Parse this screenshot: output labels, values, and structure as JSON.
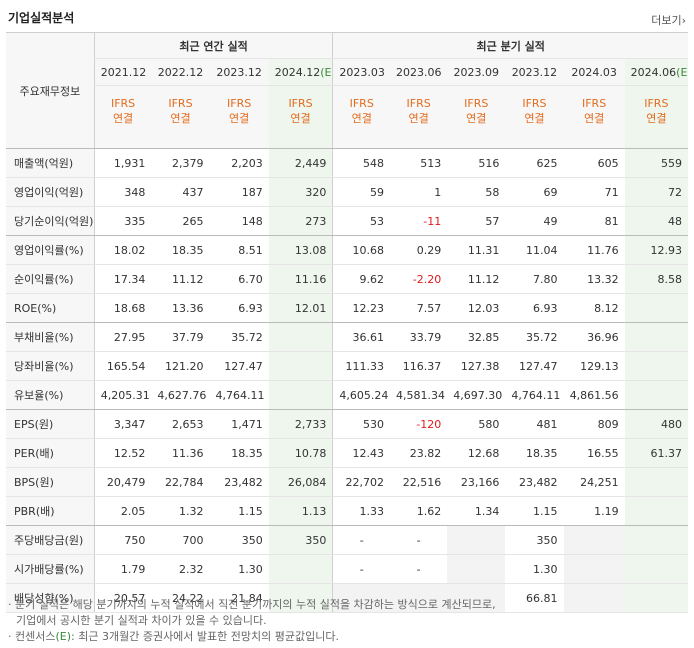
{
  "title": "기업실적분석",
  "more_label": "더보기",
  "more_icon": "chevron-right-icon",
  "header": {
    "row_label": "주요재무정보",
    "annual_group": "최근 연간 실적",
    "quarter_group": "최근 분기 실적",
    "periods": [
      "2021.12",
      "2022.12",
      "2023.12",
      "2024.12",
      "2023.03",
      "2023.06",
      "2023.09",
      "2023.12",
      "2024.03",
      "2024.06"
    ],
    "estimate_mark": "(E)",
    "basis_line1": "IFRS",
    "basis_line2": "연결"
  },
  "rows": [
    {
      "label": "매출액(억원)",
      "values": [
        "1,931",
        "2,379",
        "2,203",
        "2,449",
        "548",
        "513",
        "516",
        "625",
        "605",
        "559"
      ]
    },
    {
      "label": "영업이익(억원)",
      "values": [
        "348",
        "437",
        "187",
        "320",
        "59",
        "1",
        "58",
        "69",
        "71",
        "72"
      ]
    },
    {
      "label": "당기순이익(억원)",
      "values": [
        "335",
        "265",
        "148",
        "273",
        "53",
        "-11",
        "57",
        "49",
        "81",
        "48"
      ]
    },
    {
      "label": "영업이익률(%)",
      "values": [
        "18.02",
        "18.35",
        "8.51",
        "13.08",
        "10.68",
        "0.29",
        "11.31",
        "11.04",
        "11.76",
        "12.93"
      ]
    },
    {
      "label": "순이익률(%)",
      "values": [
        "17.34",
        "11.12",
        "6.70",
        "11.16",
        "9.62",
        "-2.20",
        "11.12",
        "7.80",
        "13.32",
        "8.58"
      ]
    },
    {
      "label": "ROE(%)",
      "values": [
        "18.68",
        "13.36",
        "6.93",
        "12.01",
        "12.23",
        "7.57",
        "12.03",
        "6.93",
        "8.12",
        ""
      ]
    },
    {
      "label": "부채비율(%)",
      "values": [
        "27.95",
        "37.79",
        "35.72",
        "",
        "36.61",
        "33.79",
        "32.85",
        "35.72",
        "36.96",
        ""
      ]
    },
    {
      "label": "당좌비율(%)",
      "values": [
        "165.54",
        "121.20",
        "127.47",
        "",
        "111.33",
        "116.37",
        "127.38",
        "127.47",
        "129.13",
        ""
      ]
    },
    {
      "label": "유보율(%)",
      "values": [
        "4,205.31",
        "4,627.76",
        "4,764.11",
        "",
        "4,605.24",
        "4,581.34",
        "4,697.30",
        "4,764.11",
        "4,861.56",
        ""
      ]
    },
    {
      "label": "EPS(원)",
      "values": [
        "3,347",
        "2,653",
        "1,471",
        "2,733",
        "530",
        "-120",
        "580",
        "481",
        "809",
        "480"
      ]
    },
    {
      "label": "PER(배)",
      "values": [
        "12.52",
        "11.36",
        "18.35",
        "10.78",
        "12.43",
        "23.82",
        "12.68",
        "18.35",
        "16.55",
        "61.37"
      ]
    },
    {
      "label": "BPS(원)",
      "values": [
        "20,479",
        "22,784",
        "23,482",
        "26,084",
        "22,702",
        "22,516",
        "23,166",
        "23,482",
        "24,251",
        ""
      ]
    },
    {
      "label": "PBR(배)",
      "values": [
        "2.05",
        "1.32",
        "1.15",
        "1.13",
        "1.33",
        "1.62",
        "1.34",
        "1.15",
        "1.19",
        ""
      ]
    },
    {
      "label": "주당배당금(원)",
      "values": [
        "750",
        "700",
        "350",
        "350",
        "-",
        "-",
        "",
        "350",
        "",
        ""
      ]
    },
    {
      "label": "시가배당률(%)",
      "values": [
        "1.79",
        "2.32",
        "1.30",
        "",
        "-",
        "-",
        "",
        "1.30",
        "",
        ""
      ]
    },
    {
      "label": "배당성향(%)",
      "values": [
        "20.57",
        "24.22",
        "21.84",
        "",
        "",
        "",
        "",
        "66.81",
        "",
        ""
      ]
    }
  ],
  "notes": {
    "line1": "· 분기 실적은 해당 분기까지의 누적 실적에서 직전 분기까지의 누적 실적을 차감하는 방식으로 계산되므로,",
    "line2": "기업에서 공시한 분기 실적과 차이가 있을 수 있습니다.",
    "line3_prefix": "· 컨센서스",
    "line3_mark": "(E)",
    "line3_suffix": ": 최근 3개월간 증권사에서 발표한 전망치의 평균값입니다."
  },
  "colors": {
    "negative": "#e01b1b",
    "basis": "#e36b1d",
    "estimate_bg": "#eef6ee"
  }
}
